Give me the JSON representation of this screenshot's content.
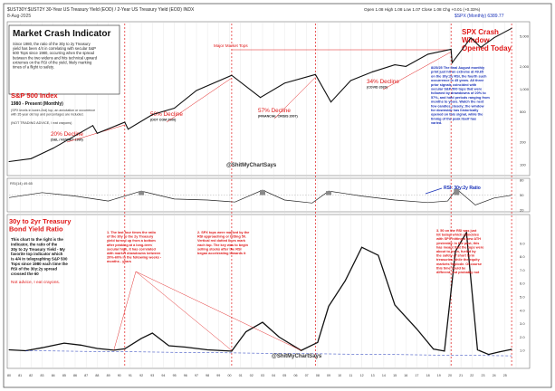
{
  "header": {
    "symbol_line": "$UST30Y:$UST2Y 30-Year US Treasury Yield (EOD) / 2-Year US Treasury Yield (EOD) INDX",
    "date": "8-Aug-2025",
    "stats": "Open 1.08  High 1.08  Low 1.07  Close 1.08  Chg +0.01 (+0.33%)",
    "price_label": "$SPX (Monthly) 6389.77"
  },
  "title_box": {
    "title": "Market Crash Indicator",
    "body": "Since 1980, the ratio of the 30y to 2y Treasury yield has been 4/4 in correlating with secular S&P 500 Tops since 1980, occurring when the spread between the two widens and hits technical upward extremes on the RSI of the yield, likely marking times of a flight to safety."
  },
  "panel1": {
    "heading": "S&P 500 Index",
    "subheading": "1980 - Present (Monthly)",
    "note": "(SPX levels in lower-2nd) top, an annotation or occurrence with 35 year old top and percentages are included.",
    "disclaimer": "(NOT TRADING ADVICE, I eat crayons)",
    "major_tops_label": "Major Market Tops",
    "crash_title": "SPX Crash Window Opened Today",
    "right_note": "8/25/25 The final August monthly print just hit an extreme at 49.65 on the 30y:2y RSI, the fourth such occurrence in 45 years. All three prior signals coincided with secular S&P 500 tops that were followed by drawdowns of 20% to 57%, and hold periods ranging from months to years. Watch the next few candles closely; the window for downside has historically opened on this signal, while the timing of the peak itself has varied.",
    "declines": [
      {
        "pct": "20% Decline",
        "event": "(S&L / KUWAIT 1990)"
      },
      {
        "pct": "50% Decline",
        "event": "(DOT COM 2000)"
      },
      {
        "pct": "57% Decline",
        "event": "(FINANCIAL CRISIS 2007)"
      },
      {
        "pct": "34% Decline",
        "event": "(COVID 2020)"
      }
    ]
  },
  "panel2": {
    "label": "RSI(14) 49.65",
    "annotation": "RSI: 30y:2y Ratio"
  },
  "panel3": {
    "heading": "30y to 2yr Treasury Bond Yield Ratio",
    "description": "This chart to the right is the indicator, the ratio of the 30y to 2y Treasury Yield - My favorite top indicator which is 4/4 in telegraphing S&P 500 Tops since 1980 each time the RSI of the 30y:2y spread crossed the 60",
    "disclaimer": "Not advice, I eat crayons.",
    "notes": [
      "1. The last four times the ratio of the 30y to the 2y Treasury yield turned up from a bottom after peaking at a long-term secular high, it has correlated with market drawdowns between 20%-60% in the following weeks - months - years",
      "2. SPX tops were marked by the RSI approaching or hitting 50. Vertical red dotted lines mark each top. The key was to begin selling stocks after the RSI began accelerating towards it",
      "3. 50 on the RSI was just hit today, which coincides with SPX hitting a new ATH yesterday. In the past, this has meant that the tops were about to be in, fueled by the safety of short term treasuries while the equity markets implode. Of course this time could be different, but probably not"
    ]
  },
  "watermarks": [
    "@ShitMyChartSays",
    "@ShitMyChartSays"
  ],
  "colors": {
    "annotation_red": "#e01818",
    "annotation_blue": "#1730b8",
    "gridline": "#d6d6d6",
    "signal_fill": "#8a8a8a"
  },
  "chart_data": [
    {
      "type": "line",
      "title": "S&P 500 Index",
      "scale": "log",
      "x": [
        1980,
        1982,
        1984,
        1987.6,
        1988,
        1990.5,
        1990.8,
        1993,
        1995,
        1997,
        2000.2,
        2002.8,
        2005,
        2007.8,
        2009.2,
        2011,
        2013,
        2015,
        2016,
        2018,
        2020.1,
        2020.2,
        2021.9,
        2022.8,
        2024,
        2025.6
      ],
      "values": [
        110,
        120,
        165,
        330,
        260,
        365,
        295,
        460,
        560,
        960,
        1527,
        775,
        1200,
        1565,
        675,
        1300,
        1700,
        2100,
        2000,
        2900,
        3380,
        2240,
        4780,
        3580,
        4800,
        6389
      ],
      "y_ticks": [
        100,
        200,
        500,
        1000,
        2000,
        5000
      ],
      "grid": true
    },
    {
      "type": "line",
      "title": "RSI(14) of 30y:2y ratio",
      "x": [
        1980,
        1983,
        1986,
        1989,
        1992,
        1995,
        1998,
        2000.5,
        2003,
        2005,
        2007.5,
        2009,
        2012,
        2015,
        2018,
        2019.8,
        2020.6,
        2022.3,
        2024,
        2025.6
      ],
      "values": [
        45,
        55,
        48,
        38,
        58,
        42,
        40,
        36,
        60,
        40,
        34,
        58,
        48,
        40,
        35,
        38,
        62,
        30,
        44,
        49.65
      ],
      "ylim": [
        20,
        80
      ],
      "threshold": 50
    },
    {
      "type": "line",
      "title": "30y to 2yr Treasury Bond Yield Ratio",
      "x": [
        1980,
        1981.5,
        1983,
        1985,
        1986.5,
        1988,
        1989.5,
        1990.5,
        1992,
        1993,
        1994.5,
        1996,
        1998,
        2000.2,
        2001.5,
        2003,
        2004.5,
        2006.5,
        2008,
        2009,
        2010.5,
        2012,
        2013.5,
        2015,
        2017,
        2018.5,
        2019.5,
        2020.5,
        2021.5,
        2022.5,
        2023.5,
        2024.5,
        2025.6
      ],
      "values": [
        1.05,
        0.98,
        1.2,
        1.55,
        1.4,
        1.15,
        1.02,
        1.12,
        1.9,
        2.3,
        1.35,
        1.25,
        1.05,
        0.95,
        2.4,
        3.1,
        2.0,
        1.0,
        1.6,
        4.3,
        6.2,
        8.7,
        8.1,
        4.4,
        2.6,
        1.1,
        0.95,
        8.4,
        9.8,
        1.05,
        0.7,
        0.9,
        1.08
      ],
      "ylim": [
        0,
        10
      ]
    }
  ]
}
